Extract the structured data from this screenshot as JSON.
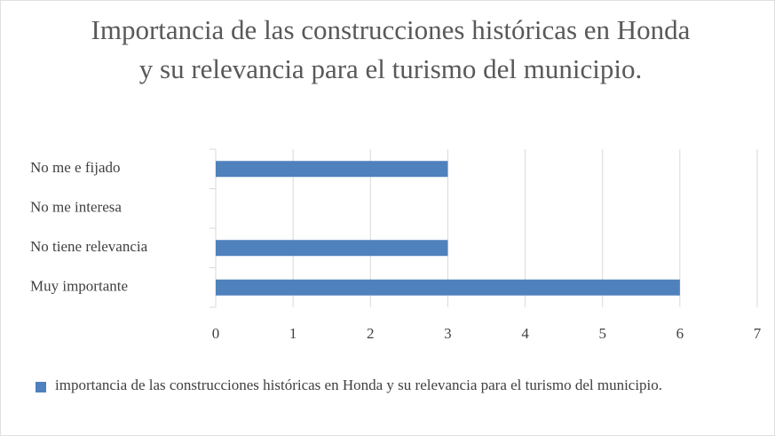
{
  "chart_data": {
    "type": "bar",
    "orientation": "horizontal",
    "title": "Importancia de las construcciones históricas en Honda y su relevancia para el turismo del municipio.",
    "categories": [
      "No me e fijado",
      "No me interesa",
      "No tiene relevancia",
      "Muy importante"
    ],
    "series": [
      {
        "name": "importancia de las construcciones históricas en Honda y su relevancia para el turismo del municipio.",
        "color": "#4f81bd",
        "values": [
          3,
          0,
          3,
          6
        ]
      }
    ],
    "xlim": [
      0,
      7
    ],
    "xticks": [
      0,
      1,
      2,
      3,
      4,
      5,
      6,
      7
    ],
    "grid": true,
    "legend": "bottom"
  }
}
